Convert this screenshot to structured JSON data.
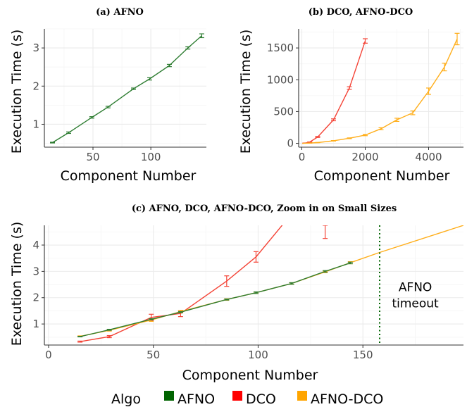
{
  "colors": {
    "AFNO": "#2e7d32",
    "DCO": "#f44336",
    "AFNO-DCO": "#ffae1a",
    "legend_AFNO": "#006400",
    "legend_DCO": "#ff0000",
    "legend_AFNO-DCO": "#ffa500",
    "timeout_line": "#006400",
    "grid_major": "#ebebeb",
    "grid_minor": "#f5f5f5",
    "axis": "#333333"
  },
  "legend": {
    "title": "Algo",
    "entries": [
      "AFNO",
      "DCO",
      "AFNO-DCO"
    ]
  },
  "chart_data": [
    {
      "id": "a",
      "type": "line",
      "title": "(a) AFNO",
      "xlabel": "Component Number",
      "ylabel": "Execution Time (s)",
      "xlim": [
        8,
        148
      ],
      "ylim": [
        0.4,
        3.5
      ],
      "xticks": [
        50,
        100
      ],
      "yticks": [
        1,
        2,
        3
      ],
      "grid": true,
      "series": [
        {
          "name": "AFNO",
          "x": [
            15,
            29,
            49,
            63,
            85,
            99,
            116,
            132,
            144
          ],
          "y": [
            0.52,
            0.78,
            1.18,
            1.45,
            1.93,
            2.19,
            2.54,
            3.0,
            3.32
          ],
          "err": [
            0.01,
            0.02,
            0.02,
            0.02,
            0.02,
            0.03,
            0.03,
            0.03,
            0.05
          ]
        }
      ]
    },
    {
      "id": "b",
      "type": "line",
      "title": "(b) DCO, AFNO-DCO",
      "xlabel": "Component Number",
      "ylabel": "Execution Time (s)",
      "xlim": [
        -100,
        5100
      ],
      "ylim": [
        -60,
        1800
      ],
      "xticks": [
        0,
        2000,
        4000
      ],
      "yticks": [
        0,
        500,
        1000,
        1500
      ],
      "grid": true,
      "series": [
        {
          "name": "DCO",
          "x": [
            15,
            100,
            250,
            500,
            1000,
            1500,
            2000
          ],
          "y": [
            0.3,
            5,
            20,
            100,
            370,
            870,
            1610
          ],
          "err": [
            0,
            1,
            2,
            8,
            15,
            20,
            35
          ]
        },
        {
          "name": "AFNO-DCO",
          "x": [
            15,
            100,
            250,
            500,
            1000,
            1500,
            2000,
            2500,
            3000,
            3500,
            4000,
            4500,
            4900
          ],
          "y": [
            0.5,
            2,
            5,
            12,
            40,
            80,
            130,
            230,
            370,
            480,
            820,
            1200,
            1640
          ],
          "err": [
            0,
            0,
            1,
            2,
            4,
            6,
            10,
            15,
            25,
            30,
            50,
            60,
            90
          ]
        }
      ]
    },
    {
      "id": "c",
      "type": "line",
      "title": "(c) AFNO, DCO, AFNO-DCO, Zoom in on Small Sizes",
      "xlabel": "Component Number",
      "ylabel": "Execution Time (s)",
      "xlim": [
        -2,
        198
      ],
      "ylim": [
        0.2,
        4.75
      ],
      "xticks": [
        0,
        50,
        100,
        150
      ],
      "yticks": [
        1,
        2,
        3,
        4
      ],
      "grid": true,
      "series": [
        {
          "name": "DCO",
          "x": [
            15,
            29,
            49,
            63,
            85,
            99,
            113
          ],
          "y": [
            0.33,
            0.52,
            1.25,
            1.4,
            2.63,
            3.55,
            4.9
          ],
          "err": [
            0.02,
            0.04,
            0.12,
            0.12,
            0.2,
            0.2,
            0
          ]
        },
        {
          "name": "AFNO-DCO",
          "x": [
            15,
            29,
            49,
            63,
            85,
            99,
            116,
            132,
            144,
            158,
            198
          ],
          "y": [
            0.53,
            0.76,
            1.15,
            1.47,
            1.93,
            2.19,
            2.54,
            2.98,
            3.33,
            3.72,
            4.75
          ],
          "err": [
            0.02,
            0.03,
            0.05,
            0.05,
            0.03,
            0.03,
            0.03,
            0.03,
            0.04,
            0,
            0
          ]
        },
        {
          "name": "AFNO",
          "x": [
            15,
            29,
            49,
            63,
            85,
            99,
            116,
            132,
            144
          ],
          "y": [
            0.52,
            0.78,
            1.18,
            1.45,
            1.93,
            2.19,
            2.54,
            3.0,
            3.32
          ],
          "err": [
            0.01,
            0.02,
            0.02,
            0.02,
            0.02,
            0.03,
            0.03,
            0.03,
            0.03
          ]
        }
      ],
      "extra_errorbar": {
        "series": "DCO",
        "x": 132,
        "y": 4.55,
        "low": 4.25,
        "high": 4.75
      },
      "vline": {
        "x": 158,
        "style": "dotted"
      },
      "annotation": {
        "lines": [
          "AFNO",
          "timeout"
        ],
        "x": 175,
        "y": 2.1
      }
    }
  ]
}
